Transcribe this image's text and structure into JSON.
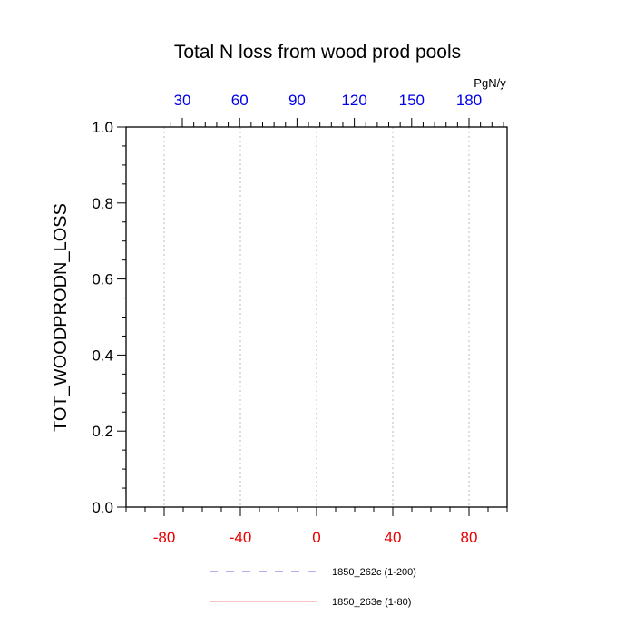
{
  "chart_data": {
    "type": "line",
    "title": "Total N loss from wood prod pools",
    "ylabel": "TOT_WOODPRODN_LOSS",
    "ylim": [
      0,
      1.0
    ],
    "yticks": [
      "0.0",
      "0.2",
      "0.4",
      "0.6",
      "0.8",
      "1.0"
    ],
    "x_bottom": {
      "lim": [
        -100,
        100
      ],
      "ticks": [
        -80,
        -40,
        0,
        40,
        80
      ],
      "color": "#e60000"
    },
    "x_top": {
      "unit": "PgN/y",
      "ticks": [
        30,
        60,
        90,
        120,
        150,
        180
      ],
      "color": "#0000e6"
    },
    "grid": "vertical dotted",
    "series": [
      {
        "name": "1850_262c (1-200)",
        "color": "#6666dd",
        "style": "dashed",
        "values": [
          0,
          0
        ]
      },
      {
        "name": "1850_263e (1-80)",
        "color": "#ee8888",
        "style": "solid",
        "values": [
          0,
          0
        ]
      }
    ],
    "legend_position": "bottom"
  }
}
